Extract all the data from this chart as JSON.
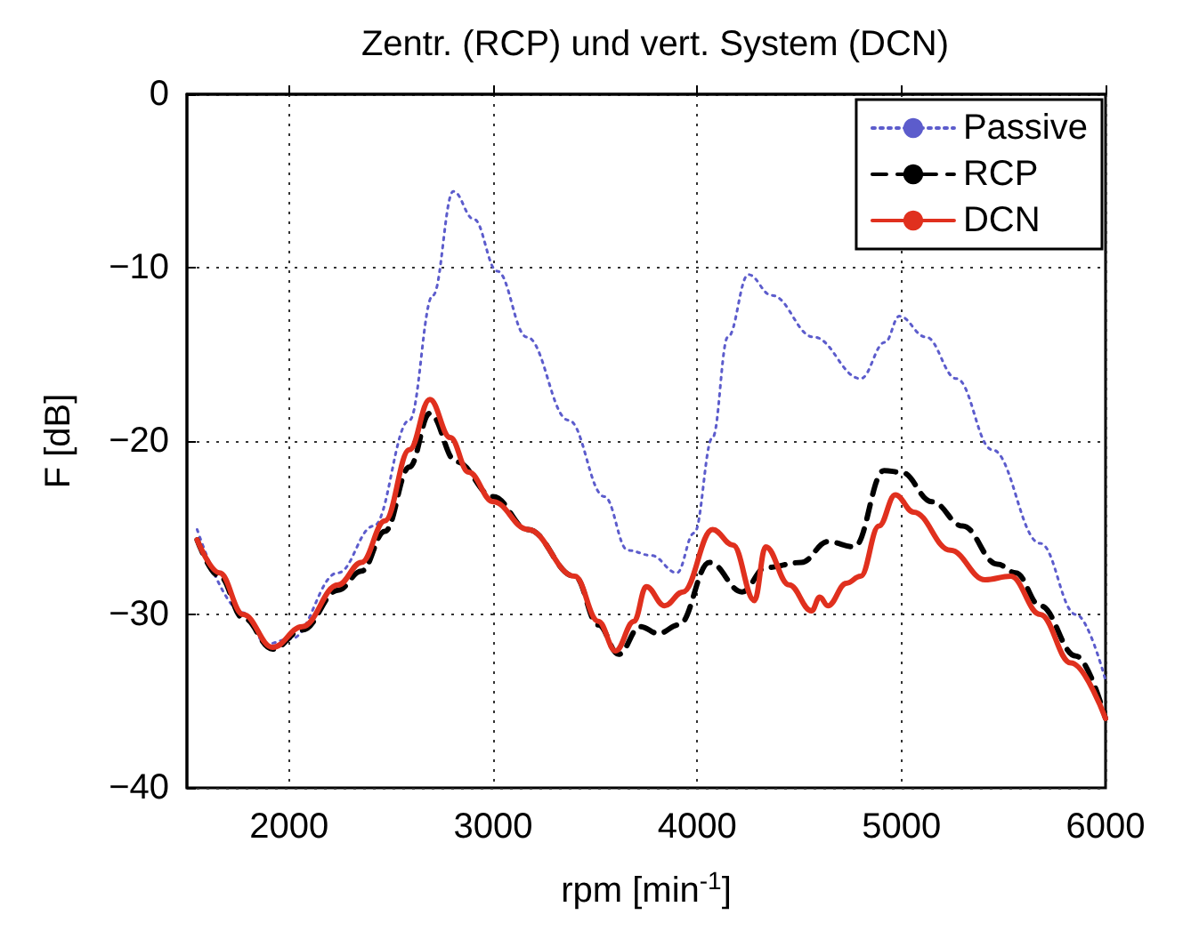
{
  "chart_data": {
    "type": "line",
    "title": "Zentr. (RCP) und vert. System (DCN)",
    "xlabel": "rpm [min$^{-1}$]",
    "ylabel": "F [dB]",
    "xlim": [
      1500,
      6000
    ],
    "xticks": [
      2000,
      3000,
      4000,
      5000,
      6000
    ],
    "ylim": [
      -40,
      0
    ],
    "yticks": [
      -40,
      -30,
      -20,
      -10,
      0
    ],
    "grid": true,
    "legend": "top right",
    "series": [
      {
        "name": "Passive",
        "color": "#5c5ccc",
        "line_style": "dotted",
        "x": [
          1550,
          1775,
          1890,
          2010,
          2240,
          2415,
          2590,
          2705,
          2805,
          2905,
          3020,
          3165,
          3370,
          3545,
          3660,
          3775,
          3900,
          3985,
          4075,
          4150,
          4250,
          4365,
          4570,
          4800,
          4920,
          4990,
          5120,
          5270,
          5445,
          5680,
          5855,
          6000
        ],
        "values": [
          -25.1,
          -29.9,
          -31.7,
          -31.4,
          -27.6,
          -24.9,
          -18.8,
          -11.6,
          -5.6,
          -7.2,
          -10.2,
          -14,
          -18.8,
          -23.2,
          -26.3,
          -26.6,
          -27.6,
          -25.3,
          -19.8,
          -14,
          -10.4,
          -11.6,
          -14,
          -16.4,
          -14.3,
          -12.8,
          -14,
          -16.4,
          -20.5,
          -25.9,
          -30,
          -33.8
        ]
      },
      {
        "name": "RCP",
        "color": "#000000",
        "line_style": "dashed",
        "x": [
          1550,
          1660,
          1775,
          1920,
          2065,
          2240,
          2355,
          2470,
          2590,
          2690,
          2820,
          3000,
          3170,
          3400,
          3515,
          3615,
          3720,
          3810,
          3910,
          4060,
          4220,
          4335,
          4510,
          4640,
          4770,
          4915,
          5000,
          5150,
          5300,
          5470,
          5560,
          5680,
          5855,
          6000
        ],
        "values": [
          -25.7,
          -27.8,
          -30.2,
          -32,
          -30.9,
          -28.6,
          -27.5,
          -25.2,
          -21.5,
          -18.4,
          -21.2,
          -23.2,
          -25.1,
          -27.8,
          -30.6,
          -32.3,
          -30.7,
          -31.1,
          -30.6,
          -27,
          -28.7,
          -27.3,
          -27,
          -25.8,
          -26.1,
          -21.7,
          -21.8,
          -23.5,
          -24.9,
          -27.1,
          -27.6,
          -29.5,
          -32.4,
          -36
        ]
      },
      {
        "name": "DCN",
        "color": "#e0301e",
        "line_style": "solid",
        "x": [
          1550,
          1660,
          1775,
          1920,
          2065,
          2240,
          2355,
          2470,
          2590,
          2690,
          2790,
          2880,
          3000,
          3170,
          3400,
          3515,
          3600,
          3690,
          3750,
          3840,
          3930,
          4075,
          4175,
          4280,
          4335,
          4450,
          4560,
          4600,
          4640,
          4730,
          4800,
          4890,
          4970,
          5060,
          5240,
          5410,
          5535,
          5680,
          5830,
          6000
        ],
        "values": [
          -25.7,
          -27.6,
          -30,
          -31.9,
          -30.7,
          -28.3,
          -27,
          -24.6,
          -20.5,
          -17.6,
          -19.8,
          -21.8,
          -23.5,
          -25.1,
          -27.8,
          -30.4,
          -32.1,
          -30.4,
          -28.4,
          -29.5,
          -28.7,
          -25.1,
          -26,
          -29.2,
          -26.1,
          -28.3,
          -29.8,
          -29,
          -29.5,
          -28.2,
          -27.8,
          -24.9,
          -23.1,
          -24.1,
          -26.3,
          -28,
          -27.8,
          -30,
          -32.8,
          -36
        ]
      }
    ]
  }
}
